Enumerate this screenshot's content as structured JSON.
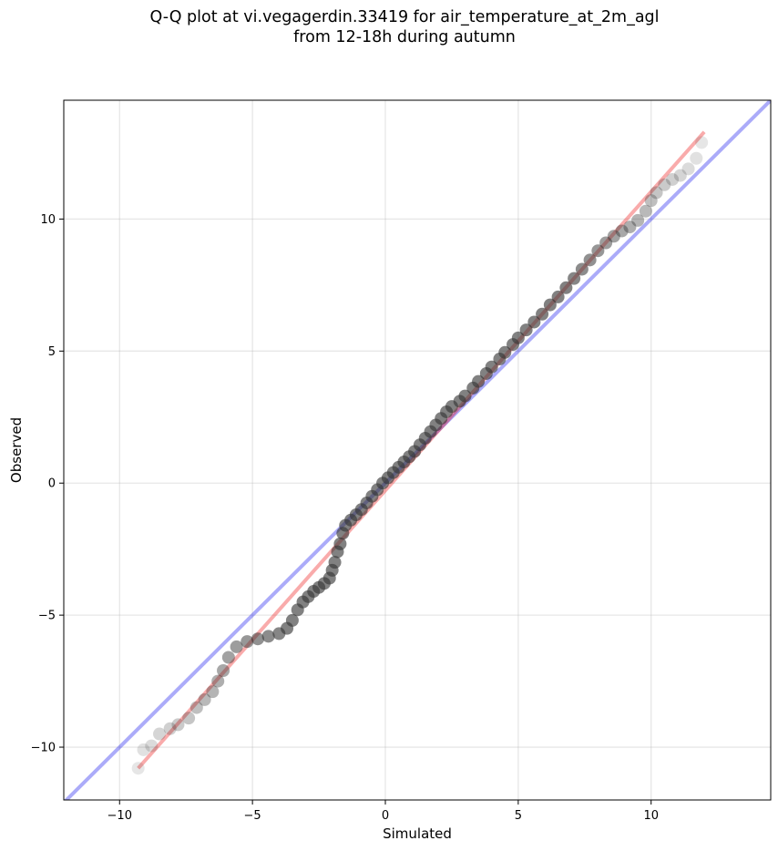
{
  "chart_data": {
    "type": "scatter",
    "title_lines": [
      "Q-Q plot at vi.vegagerdin.33419 for air_temperature_at_2m_agl",
      "from 12-18h during autumn"
    ],
    "xlabel": "Simulated",
    "ylabel": "Observed",
    "xlim": [
      -12.1,
      14.5
    ],
    "ylim": [
      -12.0,
      14.5
    ],
    "xticks": [
      -10,
      -5,
      0,
      5,
      10
    ],
    "yticks": [
      -10,
      -5,
      0,
      5,
      10
    ],
    "xtick_labels": [
      "−10",
      "−5",
      "0",
      "5",
      "10"
    ],
    "ytick_labels": [
      "−10",
      "−5",
      "0",
      "5",
      "10"
    ],
    "grid": true,
    "colors": {
      "points": "#333333",
      "identity_line": "#0000ee",
      "fit_line": "#ee0000"
    },
    "series": [
      {
        "type": "line",
        "role": "identity",
        "x": [
          -12.1,
          14.5
        ],
        "y": [
          -12.1,
          14.5
        ]
      },
      {
        "type": "line",
        "role": "fit",
        "x": [
          -9.3,
          12.0
        ],
        "y": [
          -10.8,
          13.3
        ]
      },
      {
        "type": "scatter",
        "role": "quantiles",
        "points": [
          [
            -9.3,
            -10.8
          ],
          [
            -9.1,
            -10.1
          ],
          [
            -8.8,
            -9.95
          ],
          [
            -8.5,
            -9.5
          ],
          [
            -8.1,
            -9.3
          ],
          [
            -7.8,
            -9.15
          ],
          [
            -7.4,
            -8.9
          ],
          [
            -7.1,
            -8.5
          ],
          [
            -6.8,
            -8.2
          ],
          [
            -6.5,
            -7.9
          ],
          [
            -6.3,
            -7.5
          ],
          [
            -6.1,
            -7.1
          ],
          [
            -5.9,
            -6.6
          ],
          [
            -5.6,
            -6.2
          ],
          [
            -5.2,
            -6.0
          ],
          [
            -4.8,
            -5.9
          ],
          [
            -4.4,
            -5.8
          ],
          [
            -4.0,
            -5.7
          ],
          [
            -3.7,
            -5.5
          ],
          [
            -3.5,
            -5.2
          ],
          [
            -3.3,
            -4.8
          ],
          [
            -3.1,
            -4.5
          ],
          [
            -2.9,
            -4.3
          ],
          [
            -2.7,
            -4.1
          ],
          [
            -2.5,
            -3.95
          ],
          [
            -2.3,
            -3.8
          ],
          [
            -2.1,
            -3.6
          ],
          [
            -2.0,
            -3.3
          ],
          [
            -1.9,
            -3.0
          ],
          [
            -1.8,
            -2.6
          ],
          [
            -1.7,
            -2.3
          ],
          [
            -1.6,
            -1.9
          ],
          [
            -1.5,
            -1.6
          ],
          [
            -1.3,
            -1.4
          ],
          [
            -1.1,
            -1.2
          ],
          [
            -0.9,
            -1.0
          ],
          [
            -0.7,
            -0.75
          ],
          [
            -0.5,
            -0.5
          ],
          [
            -0.3,
            -0.25
          ],
          [
            -0.1,
            0.0
          ],
          [
            0.1,
            0.2
          ],
          [
            0.3,
            0.4
          ],
          [
            0.5,
            0.6
          ],
          [
            0.7,
            0.8
          ],
          [
            0.9,
            1.0
          ],
          [
            1.1,
            1.2
          ],
          [
            1.3,
            1.45
          ],
          [
            1.5,
            1.7
          ],
          [
            1.7,
            1.95
          ],
          [
            1.9,
            2.2
          ],
          [
            2.1,
            2.45
          ],
          [
            2.3,
            2.7
          ],
          [
            2.5,
            2.9
          ],
          [
            2.8,
            3.1
          ],
          [
            3.0,
            3.3
          ],
          [
            3.3,
            3.6
          ],
          [
            3.5,
            3.85
          ],
          [
            3.8,
            4.15
          ],
          [
            4.0,
            4.4
          ],
          [
            4.3,
            4.7
          ],
          [
            4.5,
            4.95
          ],
          [
            4.8,
            5.25
          ],
          [
            5.0,
            5.5
          ],
          [
            5.3,
            5.8
          ],
          [
            5.6,
            6.1
          ],
          [
            5.9,
            6.4
          ],
          [
            6.2,
            6.75
          ],
          [
            6.5,
            7.05
          ],
          [
            6.8,
            7.4
          ],
          [
            7.1,
            7.75
          ],
          [
            7.4,
            8.1
          ],
          [
            7.7,
            8.45
          ],
          [
            8.0,
            8.8
          ],
          [
            8.3,
            9.1
          ],
          [
            8.6,
            9.35
          ],
          [
            8.9,
            9.55
          ],
          [
            9.2,
            9.7
          ],
          [
            9.5,
            9.95
          ],
          [
            9.8,
            10.3
          ],
          [
            10.0,
            10.7
          ],
          [
            10.2,
            11.0
          ],
          [
            10.5,
            11.3
          ],
          [
            10.8,
            11.5
          ],
          [
            11.1,
            11.65
          ],
          [
            11.4,
            11.9
          ],
          [
            11.7,
            12.3
          ],
          [
            11.9,
            12.9
          ]
        ]
      }
    ]
  }
}
